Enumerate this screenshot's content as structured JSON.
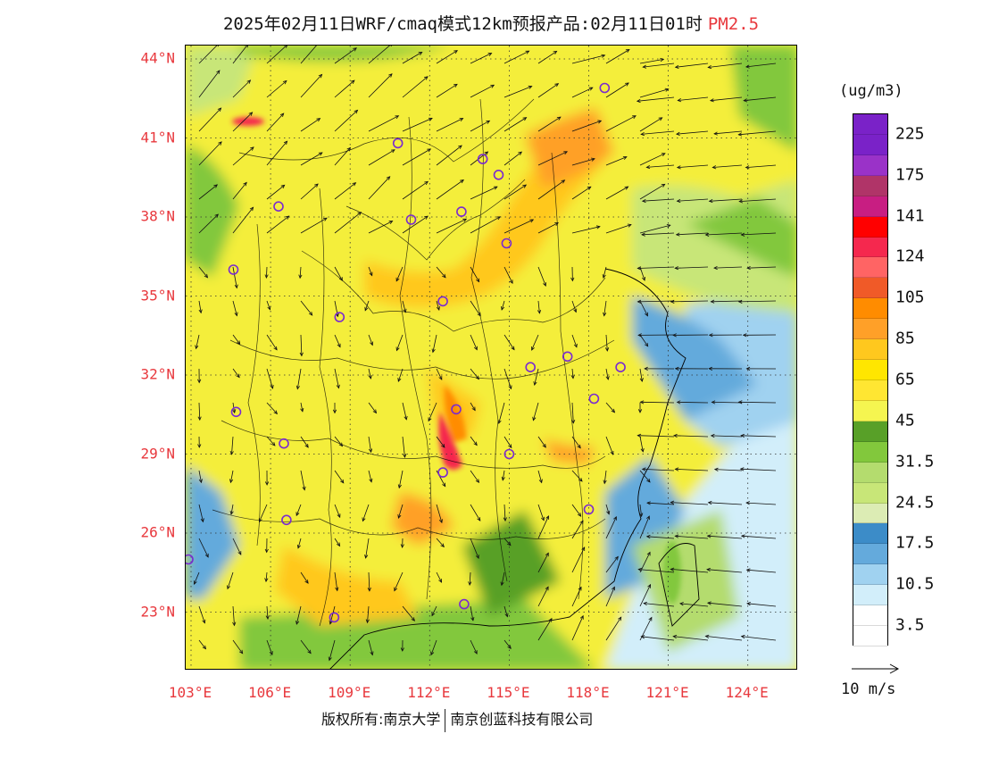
{
  "header": {
    "title": "2025年02月11日WRF/cmaq模式12km预报产品:02月11日01时",
    "product": "PM2.5"
  },
  "map": {
    "lat_labels": [
      {
        "text": "44°N",
        "lat": 44
      },
      {
        "text": "41°N",
        "lat": 41
      },
      {
        "text": "38°N",
        "lat": 38
      },
      {
        "text": "35°N",
        "lat": 35
      },
      {
        "text": "32°N",
        "lat": 32
      },
      {
        "text": "29°N",
        "lat": 29
      },
      {
        "text": "26°N",
        "lat": 26
      },
      {
        "text": "23°N",
        "lat": 23
      }
    ],
    "lon_labels": [
      {
        "text": "103°E",
        "lon": 103
      },
      {
        "text": "106°E",
        "lon": 106
      },
      {
        "text": "109°E",
        "lon": 109
      },
      {
        "text": "112°E",
        "lon": 112
      },
      {
        "text": "115°E",
        "lon": 115
      },
      {
        "text": "118°E",
        "lon": 118
      },
      {
        "text": "121°E",
        "lon": 121
      },
      {
        "text": "124°E",
        "lon": 124
      }
    ],
    "city_markers": [
      {
        "lon": 118.6,
        "lat": 42.9
      },
      {
        "lon": 110.8,
        "lat": 40.8
      },
      {
        "lon": 114.0,
        "lat": 40.2
      },
      {
        "lon": 114.6,
        "lat": 39.6
      },
      {
        "lon": 106.3,
        "lat": 38.4
      },
      {
        "lon": 111.3,
        "lat": 37.9
      },
      {
        "lon": 113.2,
        "lat": 38.2
      },
      {
        "lon": 114.9,
        "lat": 37.0
      },
      {
        "lon": 104.6,
        "lat": 36.0
      },
      {
        "lon": 112.5,
        "lat": 34.8
      },
      {
        "lon": 108.6,
        "lat": 34.2
      },
      {
        "lon": 115.8,
        "lat": 32.3
      },
      {
        "lon": 117.2,
        "lat": 32.7
      },
      {
        "lon": 119.2,
        "lat": 32.3
      },
      {
        "lon": 118.2,
        "lat": 31.1
      },
      {
        "lon": 104.7,
        "lat": 30.6
      },
      {
        "lon": 113.0,
        "lat": 30.7
      },
      {
        "lon": 106.5,
        "lat": 29.4
      },
      {
        "lon": 115.0,
        "lat": 29.0
      },
      {
        "lon": 112.5,
        "lat": 28.3
      },
      {
        "lon": 106.6,
        "lat": 26.5
      },
      {
        "lon": 118.0,
        "lat": 26.9
      },
      {
        "lon": 102.9,
        "lat": 25.0
      },
      {
        "lon": 108.4,
        "lat": 22.8
      },
      {
        "lon": 113.3,
        "lat": 23.3
      }
    ],
    "colors": {
      "frame": "#000000",
      "grid": "#333333",
      "marker": "#7a2ad0",
      "wind_arrow": "#111111"
    }
  },
  "legend": {
    "unit": "(ug/m3)",
    "colors": [
      "#7a22c8",
      "#9a32c8",
      "#b03468",
      "#c81e82",
      "#ff0000",
      "#f5284e",
      "#ff6464",
      "#f05a28",
      "#ff8c00",
      "#ffa028",
      "#ffc81e",
      "#ffe600",
      "#ffe632",
      "#f5f550",
      "#58a028",
      "#82c83c",
      "#b4dc6e",
      "#c8e678",
      "#dcecb4",
      "#3c8cc8",
      "#64aadc",
      "#a0d2f0",
      "#d2eefa",
      "#ffffff"
    ],
    "ticks": [
      {
        "text": "225",
        "index": 1
      },
      {
        "text": "175",
        "index": 3
      },
      {
        "text": "141",
        "index": 5
      },
      {
        "text": "124",
        "index": 7
      },
      {
        "text": "105",
        "index": 9
      },
      {
        "text": "85",
        "index": 11
      },
      {
        "text": "65",
        "index": 13
      },
      {
        "text": "45",
        "index": 15
      },
      {
        "text": "31.5",
        "index": 17
      },
      {
        "text": "24.5",
        "index": 19
      },
      {
        "text": "17.5",
        "index": 21
      },
      {
        "text": "10.5",
        "index": 23
      },
      {
        "text": "3.5",
        "index": 25
      }
    ]
  },
  "wind": {
    "reference_label": "10 m/s"
  },
  "footer": {
    "copyright_left": "版权所有:南京大学",
    "copyright_right": "南京创蓝科技有限公司"
  }
}
